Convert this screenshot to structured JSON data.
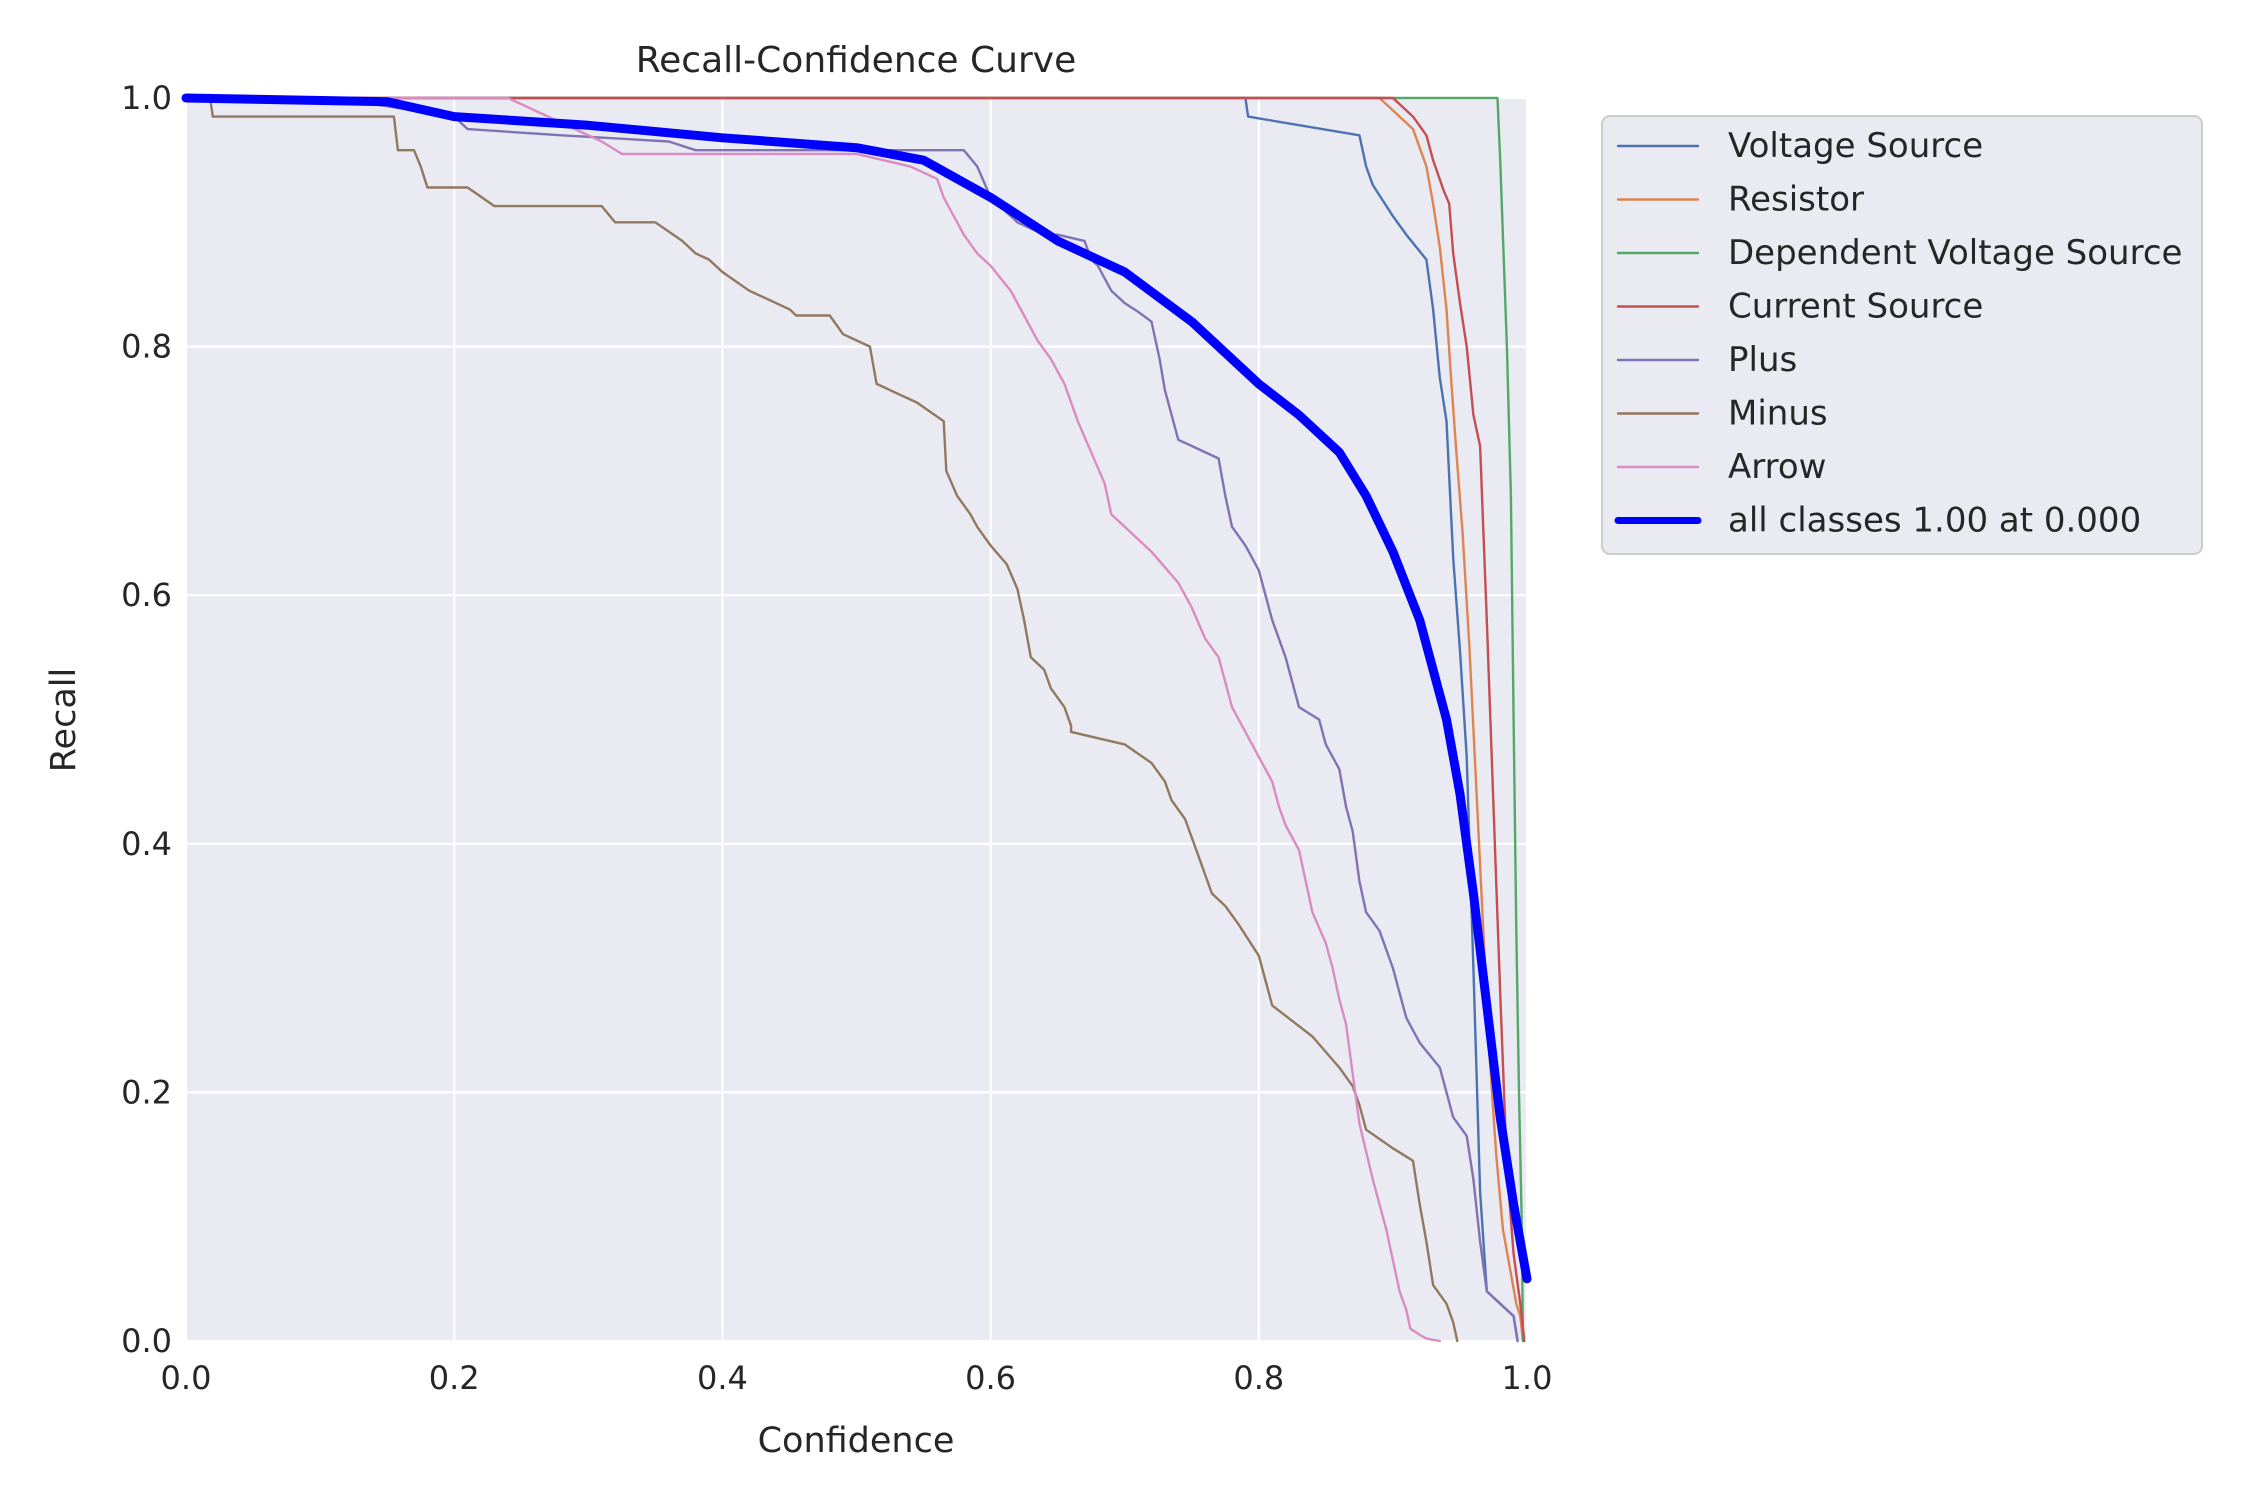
{
  "chart_data": {
    "type": "line",
    "title": "Recall-Confidence Curve",
    "xlabel": "Confidence",
    "ylabel": "Recall",
    "xlim": [
      0,
      1
    ],
    "ylim": [
      0,
      1
    ],
    "xticks": [
      "0.0",
      "0.2",
      "0.4",
      "0.6",
      "0.8",
      "1.0"
    ],
    "yticks": [
      "0.0",
      "0.2",
      "0.4",
      "0.6",
      "0.8",
      "1.0"
    ],
    "grid": true,
    "legend_position": "outside-upper-right",
    "series": [
      {
        "name": "Voltage Source",
        "color": "#4c72b0",
        "x": [
          0.0,
          0.79,
          0.792,
          0.875,
          0.88,
          0.885,
          0.9,
          0.91,
          0.925,
          0.93,
          0.935,
          0.94,
          0.945,
          0.95,
          0.955,
          0.96,
          0.965,
          0.97,
          0.975,
          0.98,
          0.99,
          0.993
        ],
        "y": [
          1.0,
          1.0,
          0.985,
          0.97,
          0.945,
          0.93,
          0.905,
          0.89,
          0.87,
          0.83,
          0.775,
          0.74,
          0.63,
          0.555,
          0.47,
          0.3,
          0.12,
          0.04,
          0.035,
          0.03,
          0.02,
          0.0
        ]
      },
      {
        "name": "Resistor",
        "color": "#dd8452",
        "x": [
          0.0,
          0.89,
          0.905,
          0.915,
          0.92,
          0.925,
          0.93,
          0.935,
          0.94,
          0.943,
          0.947,
          0.952,
          0.957,
          0.962,
          0.967,
          0.972,
          0.977,
          0.982,
          0.987,
          0.992,
          0.995,
          0.997
        ],
        "y": [
          1.0,
          1.0,
          0.985,
          0.975,
          0.96,
          0.945,
          0.915,
          0.88,
          0.83,
          0.78,
          0.72,
          0.65,
          0.56,
          0.45,
          0.34,
          0.23,
          0.15,
          0.09,
          0.06,
          0.03,
          0.02,
          0.0
        ]
      },
      {
        "name": "Dependent Voltage Source",
        "color": "#55a868",
        "x": [
          0.0,
          0.978,
          0.98,
          0.985,
          0.988,
          0.99,
          0.992,
          0.994,
          0.996,
          0.997
        ],
        "y": [
          1.0,
          1.0,
          0.95,
          0.8,
          0.68,
          0.5,
          0.33,
          0.2,
          0.1,
          0.0
        ]
      },
      {
        "name": "Current Source",
        "color": "#c44e52",
        "x": [
          0.0,
          0.9,
          0.915,
          0.925,
          0.93,
          0.938,
          0.942,
          0.945,
          0.95,
          0.955,
          0.96,
          0.965,
          0.97,
          0.975,
          0.98,
          0.985,
          0.99,
          0.995,
          0.998
        ],
        "y": [
          1.0,
          1.0,
          0.985,
          0.97,
          0.95,
          0.925,
          0.915,
          0.875,
          0.835,
          0.8,
          0.745,
          0.72,
          0.58,
          0.43,
          0.28,
          0.14,
          0.07,
          0.03,
          0.0
        ]
      },
      {
        "name": "Plus",
        "color": "#8172b3",
        "x": [
          0.0,
          0.13,
          0.14,
          0.2,
          0.21,
          0.28,
          0.36,
          0.38,
          0.5,
          0.55,
          0.58,
          0.59,
          0.6,
          0.61,
          0.62,
          0.63,
          0.64,
          0.65,
          0.67,
          0.675,
          0.68,
          0.69,
          0.7,
          0.71,
          0.72,
          0.726,
          0.73,
          0.735,
          0.74,
          0.75,
          0.77,
          0.775,
          0.78,
          0.79,
          0.8,
          0.805,
          0.81,
          0.82,
          0.83,
          0.845,
          0.85,
          0.86,
          0.865,
          0.87,
          0.875,
          0.88,
          0.89,
          0.9,
          0.905,
          0.91,
          0.915,
          0.92,
          0.935,
          0.945,
          0.955,
          0.96,
          0.965,
          0.97,
          0.99,
          0.993
        ],
        "y": [
          1.0,
          1.0,
          0.995,
          0.985,
          0.975,
          0.97,
          0.965,
          0.958,
          0.958,
          0.958,
          0.958,
          0.945,
          0.92,
          0.91,
          0.9,
          0.895,
          0.89,
          0.89,
          0.885,
          0.87,
          0.865,
          0.845,
          0.835,
          0.828,
          0.82,
          0.79,
          0.765,
          0.745,
          0.725,
          0.72,
          0.71,
          0.68,
          0.655,
          0.64,
          0.62,
          0.6,
          0.58,
          0.55,
          0.51,
          0.5,
          0.48,
          0.46,
          0.43,
          0.41,
          0.37,
          0.345,
          0.33,
          0.3,
          0.28,
          0.26,
          0.25,
          0.24,
          0.22,
          0.18,
          0.165,
          0.13,
          0.08,
          0.04,
          0.02,
          0.0
        ]
      },
      {
        "name": "Minus",
        "color": "#937860",
        "x": [
          0.0,
          0.018,
          0.02,
          0.155,
          0.158,
          0.17,
          0.175,
          0.18,
          0.21,
          0.23,
          0.31,
          0.32,
          0.35,
          0.37,
          0.38,
          0.39,
          0.4,
          0.42,
          0.45,
          0.455,
          0.48,
          0.49,
          0.51,
          0.515,
          0.545,
          0.565,
          0.567,
          0.575,
          0.585,
          0.59,
          0.6,
          0.612,
          0.62,
          0.625,
          0.63,
          0.64,
          0.645,
          0.655,
          0.66,
          0.66,
          0.7,
          0.72,
          0.73,
          0.735,
          0.745,
          0.75,
          0.755,
          0.76,
          0.765,
          0.775,
          0.785,
          0.8,
          0.805,
          0.81,
          0.84,
          0.86,
          0.87,
          0.875,
          0.88,
          0.9,
          0.915,
          0.92,
          0.925,
          0.93,
          0.94,
          0.945,
          0.948
        ],
        "y": [
          1.0,
          1.0,
          0.985,
          0.985,
          0.958,
          0.958,
          0.945,
          0.928,
          0.928,
          0.913,
          0.913,
          0.9,
          0.9,
          0.885,
          0.875,
          0.87,
          0.86,
          0.845,
          0.83,
          0.825,
          0.825,
          0.81,
          0.8,
          0.77,
          0.755,
          0.74,
          0.7,
          0.68,
          0.665,
          0.655,
          0.64,
          0.625,
          0.605,
          0.58,
          0.55,
          0.54,
          0.525,
          0.51,
          0.495,
          0.49,
          0.48,
          0.465,
          0.45,
          0.435,
          0.42,
          0.405,
          0.39,
          0.375,
          0.36,
          0.35,
          0.335,
          0.31,
          0.29,
          0.27,
          0.245,
          0.22,
          0.205,
          0.19,
          0.17,
          0.155,
          0.145,
          0.11,
          0.08,
          0.045,
          0.03,
          0.015,
          0.0
        ]
      },
      {
        "name": "Arrow",
        "color": "#da8bc3",
        "x": [
          0.0,
          0.24,
          0.25,
          0.27,
          0.29,
          0.31,
          0.325,
          0.5,
          0.54,
          0.56,
          0.565,
          0.57,
          0.575,
          0.58,
          0.59,
          0.6,
          0.615,
          0.625,
          0.635,
          0.645,
          0.655,
          0.665,
          0.675,
          0.685,
          0.69,
          0.7,
          0.71,
          0.72,
          0.74,
          0.75,
          0.76,
          0.77,
          0.775,
          0.78,
          0.79,
          0.8,
          0.81,
          0.815,
          0.82,
          0.83,
          0.835,
          0.84,
          0.85,
          0.855,
          0.86,
          0.865,
          0.87,
          0.875,
          0.885,
          0.89,
          0.895,
          0.9,
          0.905,
          0.91,
          0.913,
          0.92,
          0.925,
          0.93,
          0.935
        ],
        "y": [
          1.0,
          1.0,
          0.995,
          0.985,
          0.975,
          0.965,
          0.955,
          0.955,
          0.945,
          0.935,
          0.92,
          0.91,
          0.9,
          0.89,
          0.875,
          0.865,
          0.845,
          0.825,
          0.805,
          0.79,
          0.77,
          0.74,
          0.715,
          0.69,
          0.665,
          0.655,
          0.645,
          0.635,
          0.61,
          0.59,
          0.565,
          0.55,
          0.53,
          0.51,
          0.49,
          0.47,
          0.45,
          0.43,
          0.415,
          0.395,
          0.37,
          0.345,
          0.32,
          0.3,
          0.275,
          0.255,
          0.215,
          0.175,
          0.13,
          0.11,
          0.09,
          0.065,
          0.04,
          0.025,
          0.01,
          0.005,
          0.002,
          0.001,
          0.0
        ]
      },
      {
        "name": "all classes 1.00 at 0.000",
        "color": "#0000ff",
        "bold": true,
        "x": [
          0.0,
          0.15,
          0.2,
          0.3,
          0.4,
          0.5,
          0.55,
          0.6,
          0.65,
          0.7,
          0.75,
          0.8,
          0.83,
          0.86,
          0.88,
          0.9,
          0.92,
          0.94,
          0.95,
          0.96,
          0.97,
          0.98,
          0.99,
          1.0
        ],
        "y": [
          1.0,
          0.997,
          0.985,
          0.978,
          0.968,
          0.96,
          0.95,
          0.92,
          0.885,
          0.86,
          0.82,
          0.77,
          0.745,
          0.715,
          0.68,
          0.635,
          0.58,
          0.5,
          0.44,
          0.36,
          0.27,
          0.18,
          0.11,
          0.05
        ]
      }
    ]
  }
}
